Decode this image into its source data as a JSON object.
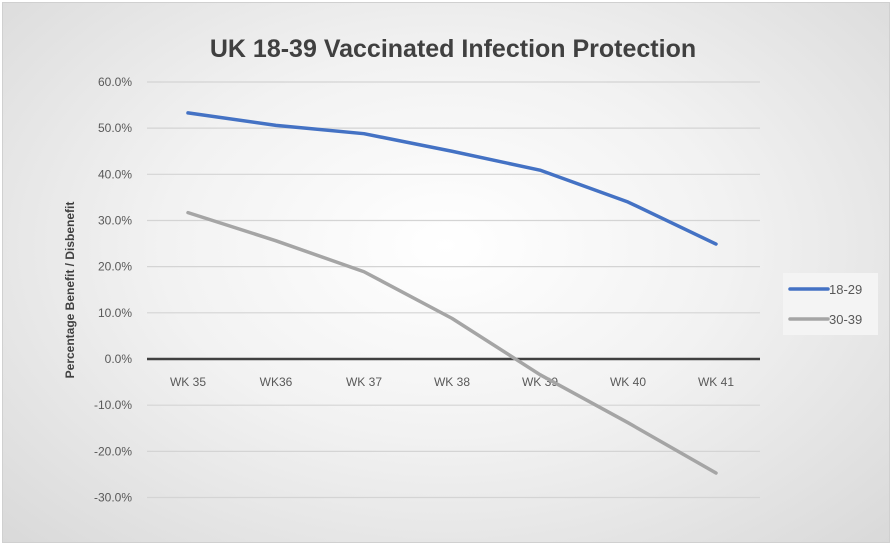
{
  "chart_data": {
    "type": "line",
    "title": "UK 18-39 Vaccinated Infection Protection",
    "xlabel": "",
    "ylabel": "Percentage Benefit / Disbenefit",
    "categories": [
      "WK 35",
      "WK36",
      "WK 37",
      "WK 38",
      "WK 39",
      "WK 40",
      "WK 41"
    ],
    "ylim": [
      -30,
      60
    ],
    "yticks": [
      60,
      50,
      40,
      30,
      20,
      10,
      0,
      -10,
      -20,
      -30
    ],
    "ytick_labels": [
      "60.0%",
      "50.0%",
      "40.0%",
      "30.0%",
      "20.0%",
      "10.0%",
      "0.0%",
      "-10.0%",
      "-20.0%",
      "-30.0%"
    ],
    "grid": true,
    "legend_position": "right",
    "series": [
      {
        "name": "18-29",
        "color": "#4472c4",
        "values": [
          53.3,
          50.6,
          48.8,
          45.0,
          40.9,
          34.0,
          24.9
        ]
      },
      {
        "name": "30-39",
        "color": "#a5a5a5",
        "values": [
          31.7,
          25.6,
          18.9,
          8.8,
          -3.4,
          -13.8,
          -24.7
        ]
      }
    ]
  }
}
